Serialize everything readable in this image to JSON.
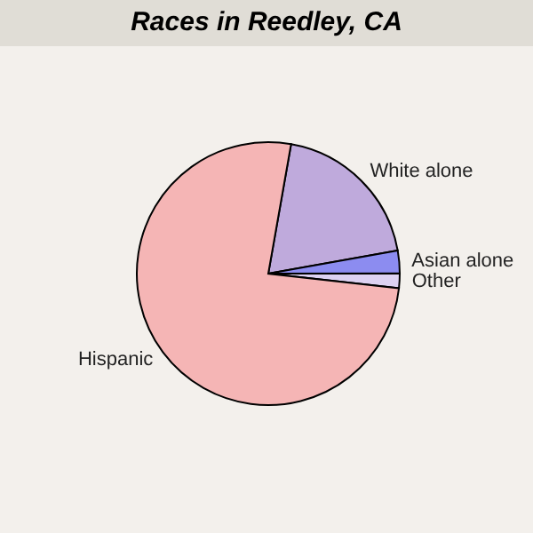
{
  "chart_data": {
    "type": "pie",
    "title": "Races in Reedley, CA",
    "categories": [
      "White alone",
      "Asian alone",
      "Other",
      "Hispanic"
    ],
    "values": [
      19.4,
      2.8,
      1.8,
      76.0
    ],
    "colors": [
      "#bfaadc",
      "#8c8cf0",
      "#ddd2f2",
      "#f5b5b5"
    ],
    "legend": false
  }
}
